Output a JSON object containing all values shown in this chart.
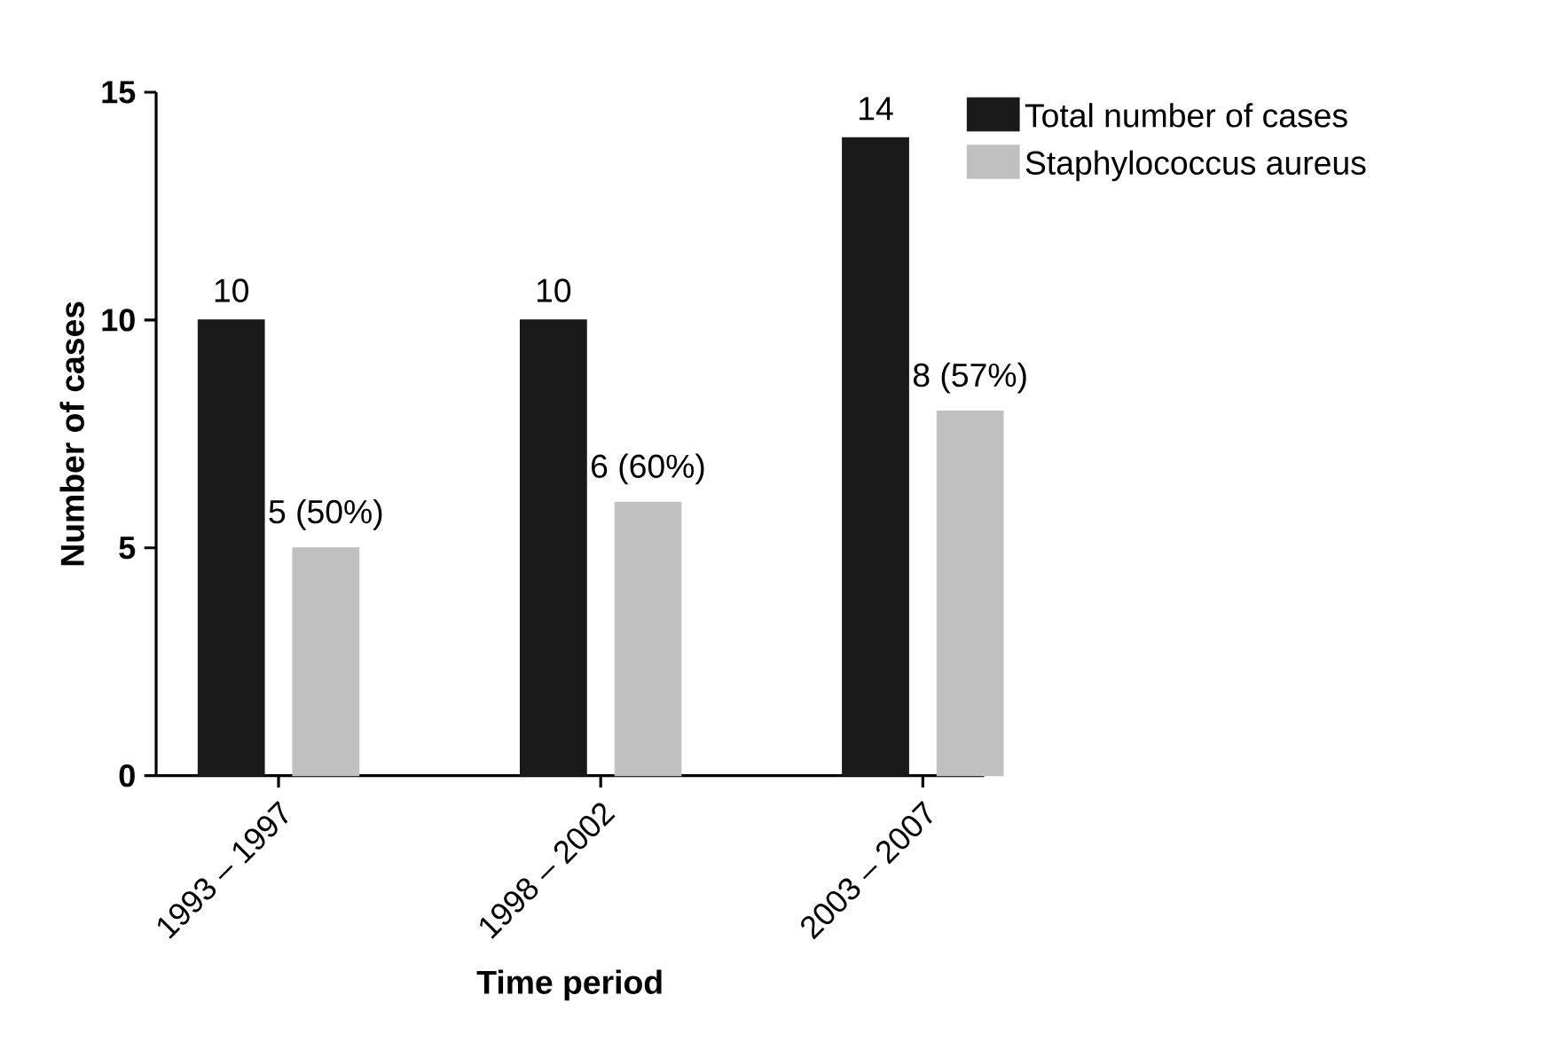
{
  "chart_data": {
    "type": "bar",
    "xlabel": "Time period",
    "ylabel": "Number of cases",
    "categories": [
      "1993 – 1997",
      "1998 – 2002",
      "2003 – 2007"
    ],
    "series": [
      {
        "name": "Total number of cases",
        "color": "#1a1a1a",
        "values": [
          10,
          10,
          14
        ],
        "value_labels": [
          "10",
          "10",
          "14"
        ]
      },
      {
        "name": "Staphylococcus aureus",
        "color": "#c0c0c0",
        "values": [
          5,
          6,
          8
        ],
        "value_labels": [
          "5 (50%)",
          "6 (60%)",
          "8 (57%)"
        ]
      }
    ],
    "ylim": [
      0,
      15
    ],
    "yticks": [
      0,
      5,
      10,
      15
    ],
    "grid": false,
    "legend": "top right"
  }
}
